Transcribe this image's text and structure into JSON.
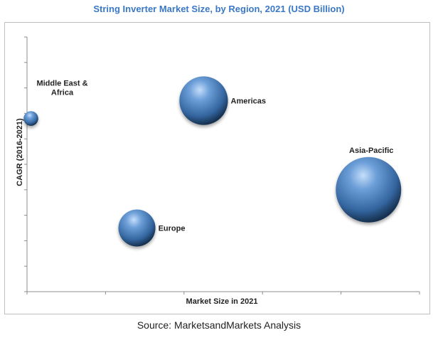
{
  "chart_data": {
    "type": "bubble",
    "title": "String Inverter Market Size, by Region, 2021 (USD Billion)",
    "xlabel": "Market Size in 2021",
    "ylabel": "CAGR (2016-2021)",
    "grid": false,
    "axis_ticks_labeled": false,
    "series": [
      {
        "name": "Middle East & Africa",
        "label_lines": [
          "Middle East &",
          "Africa"
        ],
        "x": 0.1,
        "y": 6.3,
        "size": 0.05
      },
      {
        "name": "Americas",
        "label_lines": [
          "Americas"
        ],
        "x": 4.5,
        "y": 7.0,
        "size": 0.55
      },
      {
        "name": "Asia-Pacific",
        "label_lines": [
          "Asia-Pacific"
        ],
        "x": 8.7,
        "y": 3.5,
        "size": 1.0
      },
      {
        "name": "Europe",
        "label_lines": [
          "Europe"
        ],
        "x": 2.8,
        "y": 2.0,
        "size": 0.32
      }
    ],
    "xlim": [
      0,
      10
    ],
    "ylim": [
      -0.5,
      9.5
    ],
    "y_ticks": 10,
    "x_ticks": 5,
    "colors": {
      "bubble_light": "#bcd8f5",
      "bubble_mid": "#4f86c6",
      "bubble_dark": "#1c3c64",
      "axis": "#8c8c8c"
    }
  },
  "source": "Source: MarketsandMarkets Analysis"
}
